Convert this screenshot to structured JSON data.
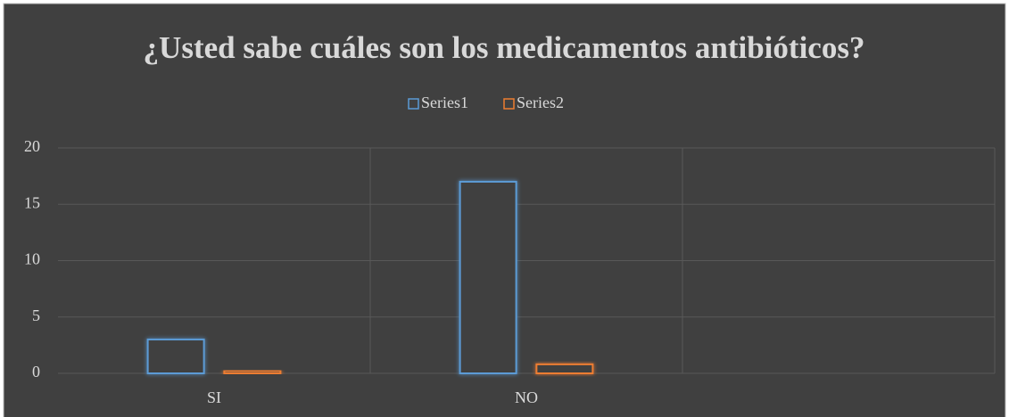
{
  "chart_data": {
    "type": "bar",
    "title": "¿Usted sabe cuáles son los medicamentos antibióticos?",
    "categories": [
      "SI",
      "NO",
      null
    ],
    "series": [
      {
        "name": "Series1",
        "color": "#5b9bd5",
        "values": [
          3,
          17,
          null
        ]
      },
      {
        "name": "Series2",
        "color": "#ed7d31",
        "values": [
          0.2,
          0.8,
          null
        ]
      }
    ],
    "ylim": [
      0,
      20
    ],
    "yticks": [
      0,
      5,
      10,
      15,
      20
    ],
    "grid": true,
    "legend": "top"
  }
}
